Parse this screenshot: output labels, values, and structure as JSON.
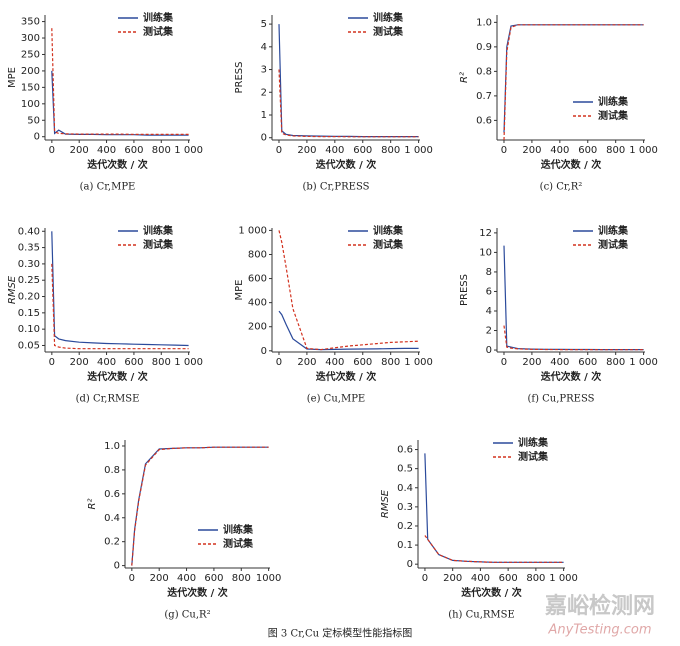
{
  "figure_caption": "图 3  Cr,Cu 定标模型性能指标图",
  "watermark": [
    "嘉峪检测网",
    "AnyTesting.com"
  ],
  "chart_data": [
    {
      "type": "line",
      "caption": "(a)   Cr,MPE",
      "x_label": "迭代次数 / 次",
      "y_label": "MPE",
      "legend": "upper right",
      "x": [
        0,
        20,
        50,
        100,
        200,
        300,
        400,
        500,
        600,
        700,
        800,
        900,
        1000
      ],
      "xlim": [
        -50,
        1010
      ],
      "xticks": [
        0,
        200,
        400,
        600,
        800,
        {
          "value": 1000,
          "label": "1 000"
        }
      ],
      "ylim": [
        -10,
        370
      ],
      "yticks": [
        0,
        50,
        100,
        150,
        200,
        250,
        300,
        350
      ],
      "series": [
        {
          "name": "训练集",
          "color": "#2b4a9b",
          "dash": false,
          "values": [
            200,
            10,
            20,
            8,
            7,
            7,
            6,
            6,
            6,
            5,
            5,
            5,
            5
          ]
        },
        {
          "name": "测试集",
          "color": "#d2321f",
          "dash": true,
          "values": [
            330,
            15,
            10,
            9,
            8,
            8,
            8,
            8,
            7,
            7,
            7,
            7,
            7
          ]
        }
      ]
    },
    {
      "type": "line",
      "caption": "(b)   Cr,PRESS",
      "x_label": "迭代次数 / 次",
      "y_label": "PRESS",
      "legend": "upper right",
      "x": [
        0,
        20,
        50,
        100,
        200,
        300,
        400,
        500,
        600,
        700,
        800,
        900,
        1000
      ],
      "xlim": [
        -50,
        1010
      ],
      "xticks": [
        0,
        200,
        400,
        600,
        800,
        {
          "value": 1000,
          "label": "1 000"
        }
      ],
      "ylim": [
        -0.1,
        5.4
      ],
      "yticks": [
        0,
        1,
        2,
        3,
        4,
        5
      ],
      "series": [
        {
          "name": "训练集",
          "color": "#2b4a9b",
          "dash": false,
          "values": [
            5,
            0.3,
            0.15,
            0.1,
            0.08,
            0.07,
            0.06,
            0.06,
            0.05,
            0.05,
            0.05,
            0.05,
            0.05
          ]
        },
        {
          "name": "测试集",
          "color": "#d2321f",
          "dash": true,
          "values": [
            3,
            0.2,
            0.12,
            0.08,
            0.06,
            0.05,
            0.05,
            0.04,
            0.04,
            0.04,
            0.04,
            0.04,
            0.04
          ]
        }
      ]
    },
    {
      "type": "line",
      "caption": "(c)   Cr,R²",
      "x_label": "迭代次数 / 次",
      "y_label": "R²",
      "legend": "lower right",
      "x": [
        0,
        20,
        50,
        100,
        200,
        300,
        400,
        500,
        600,
        700,
        800,
        900,
        1000
      ],
      "xlim": [
        -50,
        1010
      ],
      "xticks": [
        0,
        200,
        400,
        600,
        800,
        {
          "value": 1000,
          "label": "1 000"
        }
      ],
      "ylim": [
        0.52,
        1.03
      ],
      "yticks": [
        0.6,
        0.7,
        0.8,
        0.9,
        {
          "value": 1,
          "label": "1.0"
        }
      ],
      "series": [
        {
          "name": "训练集",
          "color": "#2b4a9b",
          "dash": false,
          "values": [
            0.55,
            0.9,
            0.985,
            0.99,
            0.99,
            0.99,
            0.99,
            0.99,
            0.99,
            0.99,
            0.99,
            0.99,
            0.99
          ]
        },
        {
          "name": "测试集",
          "color": "#d2321f",
          "dash": true,
          "values": [
            0.52,
            0.88,
            0.98,
            0.99,
            0.99,
            0.99,
            0.99,
            0.99,
            0.99,
            0.99,
            0.99,
            0.99,
            0.99
          ]
        }
      ]
    },
    {
      "type": "line",
      "caption": "(d)   Cr,RMSE",
      "x_label": "迭代次数 / 次",
      "y_label": "RMSE",
      "legend": "upper right",
      "x": [
        0,
        20,
        50,
        100,
        200,
        300,
        400,
        500,
        600,
        700,
        800,
        900,
        1000
      ],
      "xlim": [
        -50,
        1010
      ],
      "xticks": [
        0,
        200,
        400,
        600,
        800,
        {
          "value": 1000,
          "label": "1 000"
        }
      ],
      "ylim": [
        0.03,
        0.41
      ],
      "yticks": [
        0.05,
        {
          "value": 0.1,
          "label": "0.10"
        },
        0.15,
        {
          "value": 0.2,
          "label": "0.20"
        },
        0.25,
        {
          "value": 0.3,
          "label": "0.30"
        },
        0.35,
        {
          "value": 0.4,
          "label": "0.40"
        }
      ],
      "series": [
        {
          "name": "训练集",
          "color": "#2b4a9b",
          "dash": false,
          "values": [
            0.4,
            0.08,
            0.07,
            0.065,
            0.06,
            0.058,
            0.056,
            0.055,
            0.054,
            0.053,
            0.052,
            0.051,
            0.05
          ]
        },
        {
          "name": "测试集",
          "color": "#d2321f",
          "dash": true,
          "values": [
            0.3,
            0.05,
            0.045,
            0.042,
            0.04,
            0.04,
            0.04,
            0.04,
            0.04,
            0.04,
            0.04,
            0.04,
            0.04
          ]
        }
      ]
    },
    {
      "type": "line",
      "caption": "(e)   Cu,MPE",
      "x_label": "迭代次数 / 次",
      "y_label": "MPE",
      "legend": "upper right",
      "x": [
        0,
        20,
        50,
        100,
        200,
        300,
        400,
        500,
        600,
        700,
        800,
        900,
        1000
      ],
      "xlim": [
        -50,
        1010
      ],
      "xticks": [
        0,
        200,
        400,
        600,
        800,
        {
          "value": 1000,
          "label": "1 000"
        }
      ],
      "ylim": [
        -10,
        1020
      ],
      "yticks": [
        0,
        200,
        400,
        600,
        800,
        {
          "value": 1000,
          "label": "1 000"
        }
      ],
      "series": [
        {
          "name": "训练集",
          "color": "#2b4a9b",
          "dash": false,
          "values": [
            330,
            300,
            220,
            100,
            15,
            10,
            12,
            14,
            15,
            16,
            18,
            20,
            20
          ]
        },
        {
          "name": "测试集",
          "color": "#d2321f",
          "dash": true,
          "values": [
            1000,
            900,
            700,
            350,
            20,
            10,
            25,
            40,
            50,
            60,
            70,
            75,
            80
          ]
        }
      ]
    },
    {
      "type": "line",
      "caption": "(f)   Cu,PRESS",
      "x_label": "迭代次数 / 次",
      "y_label": "PRESS",
      "legend": "upper right",
      "x": [
        0,
        20,
        50,
        100,
        200,
        300,
        400,
        500,
        600,
        700,
        800,
        900,
        1000
      ],
      "xlim": [
        -50,
        1010
      ],
      "xticks": [
        0,
        200,
        400,
        600,
        800,
        {
          "value": 1000,
          "label": "1 000"
        }
      ],
      "ylim": [
        -0.2,
        12.5
      ],
      "yticks": [
        0,
        2,
        4,
        6,
        8,
        10,
        12
      ],
      "series": [
        {
          "name": "训练集",
          "color": "#2b4a9b",
          "dash": false,
          "values": [
            10.7,
            0.4,
            0.3,
            0.15,
            0.1,
            0.08,
            0.07,
            0.06,
            0.06,
            0.05,
            0.05,
            0.05,
            0.05
          ]
        },
        {
          "name": "测试集",
          "color": "#d2321f",
          "dash": true,
          "values": [
            2.5,
            0.3,
            0.2,
            0.12,
            0.08,
            0.06,
            0.05,
            0.05,
            0.05,
            0.04,
            0.04,
            0.04,
            0.04
          ]
        }
      ]
    },
    {
      "type": "line",
      "caption": "(g)   Cu,R²",
      "x_label": "迭代次数 / 次",
      "y_label": "R²",
      "legend": "lower right",
      "x": [
        0,
        20,
        50,
        100,
        200,
        300,
        400,
        500,
        600,
        700,
        800,
        900,
        1000
      ],
      "xlim": [
        -50,
        1010
      ],
      "xticks": [
        0,
        200,
        400,
        600,
        800,
        1000
      ],
      "ylim": [
        -0.02,
        1.05
      ],
      "yticks": [
        0,
        0.2,
        0.4,
        0.6,
        0.8,
        {
          "value": 1,
          "label": "1.0"
        }
      ],
      "series": [
        {
          "name": "训练集",
          "color": "#2b4a9b",
          "dash": false,
          "values": [
            0,
            0.3,
            0.55,
            0.85,
            0.975,
            0.98,
            0.985,
            0.985,
            0.99,
            0.99,
            0.99,
            0.99,
            0.99
          ]
        },
        {
          "name": "测试集",
          "color": "#d2321f",
          "dash": true,
          "values": [
            0,
            0.29,
            0.54,
            0.84,
            0.97,
            0.98,
            0.985,
            0.985,
            0.99,
            0.99,
            0.99,
            0.99,
            0.99
          ]
        }
      ]
    },
    {
      "type": "line",
      "caption": "(h)   Cu,RMSE",
      "x_label": "迭代次数 / 次",
      "y_label": "RMSE",
      "legend": "upper right",
      "x": [
        0,
        20,
        50,
        100,
        200,
        300,
        400,
        500,
        600,
        700,
        800,
        900,
        1000
      ],
      "xlim": [
        -50,
        1010
      ],
      "xticks": [
        0,
        200,
        400,
        600,
        800,
        {
          "value": 1000,
          "label": "1 000"
        }
      ],
      "ylim": [
        -0.02,
        0.65
      ],
      "yticks": [
        0,
        0.1,
        0.2,
        0.3,
        0.4,
        0.5,
        0.6
      ],
      "series": [
        {
          "name": "训练集",
          "color": "#2b4a9b",
          "dash": false,
          "values": [
            0.58,
            0.13,
            0.1,
            0.05,
            0.02,
            0.015,
            0.012,
            0.01,
            0.01,
            0.01,
            0.01,
            0.01,
            0.01
          ]
        },
        {
          "name": "测试集",
          "color": "#d2321f",
          "dash": true,
          "values": [
            0.15,
            0.13,
            0.1,
            0.05,
            0.02,
            0.015,
            0.012,
            0.01,
            0.01,
            0.01,
            0.01,
            0.01,
            0.01
          ]
        }
      ]
    }
  ]
}
